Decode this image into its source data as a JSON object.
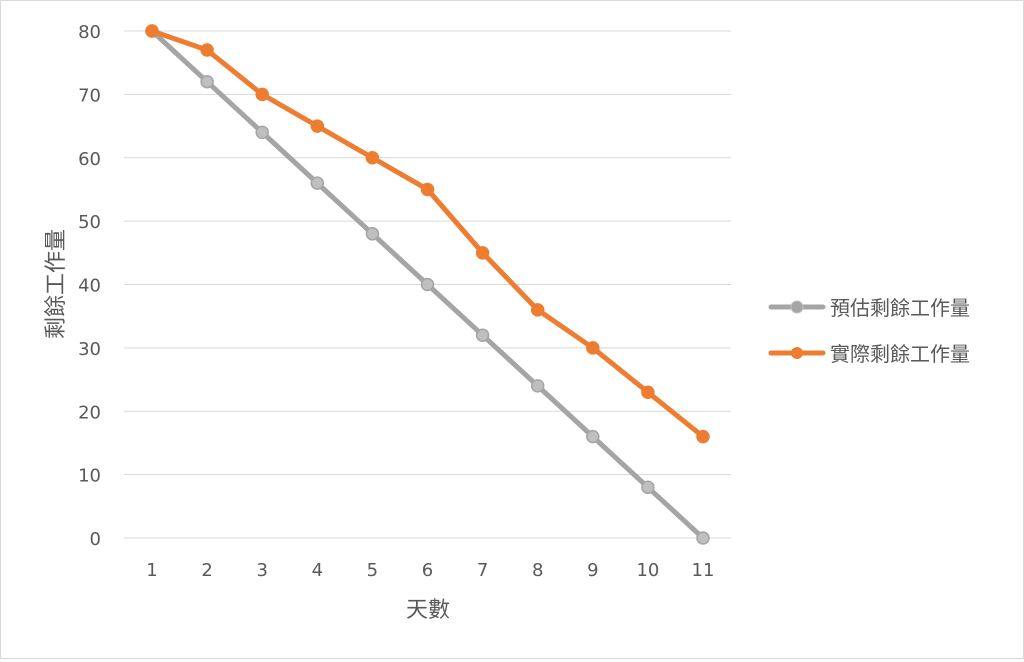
{
  "chart_data": {
    "type": "line",
    "title": "",
    "xlabel": "天數",
    "ylabel": "剩餘工作量",
    "categories": [
      "1",
      "2",
      "3",
      "4",
      "5",
      "6",
      "7",
      "8",
      "9",
      "10",
      "11"
    ],
    "ylim": [
      0,
      80
    ],
    "yticks": [
      "0",
      "10",
      "20",
      "30",
      "40",
      "50",
      "60",
      "70",
      "80"
    ],
    "grid": true,
    "legend": "right",
    "series": [
      {
        "name": "預估剩餘工作量",
        "color": "#a5a5a5",
        "values": [
          80,
          72,
          64,
          56,
          48,
          40,
          32,
          24,
          16,
          8,
          0
        ]
      },
      {
        "name": "實際剩餘工作量",
        "color": "#ed7d31",
        "values": [
          80,
          77,
          70,
          65,
          60,
          55,
          45,
          36,
          30,
          23,
          16
        ]
      }
    ]
  }
}
